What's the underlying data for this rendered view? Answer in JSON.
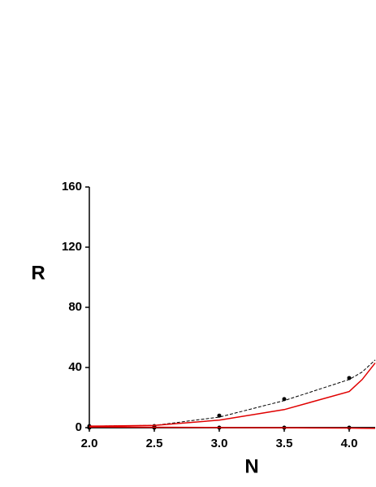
{
  "chart_data": {
    "type": "line",
    "x_label": "N",
    "y_label": "R",
    "x": [
      2.0,
      2.5,
      3.0,
      3.5,
      4.0,
      4.1,
      4.2
    ],
    "series": [
      {
        "style": "markers",
        "color": "#000000",
        "values": [
          1,
          1,
          8,
          19,
          33,
          null,
          null
        ]
      },
      {
        "style": "markers",
        "color": "#000000",
        "values": [
          0,
          0,
          0,
          0,
          0,
          null,
          null
        ]
      },
      {
        "style": "dashed",
        "color": "#000000",
        "values": [
          1,
          1.5,
          7,
          18,
          32,
          37,
          45
        ]
      },
      {
        "style": "solid",
        "color": "#e00000",
        "values": [
          1,
          1.5,
          5,
          12,
          24,
          32,
          43
        ]
      },
      {
        "style": "solid",
        "color": "#000000",
        "values": [
          0,
          0,
          0,
          0,
          0,
          0,
          0
        ]
      },
      {
        "style": "solid",
        "color": "#e00000",
        "values": [
          0.5,
          0.3,
          0.1,
          -0.1,
          -0.3,
          -0.4,
          -0.5
        ]
      }
    ],
    "xlim": [
      2.0,
      4.2
    ],
    "ylim": [
      0,
      160
    ],
    "xticks": [
      {
        "value": 2,
        "label": "2.0"
      },
      2.5,
      {
        "value": 3,
        "label": "3.0"
      },
      3.5,
      {
        "value": 4,
        "label": "4.0"
      }
    ],
    "yticks": [
      0,
      40,
      80,
      120,
      160
    ],
    "grid": false
  }
}
